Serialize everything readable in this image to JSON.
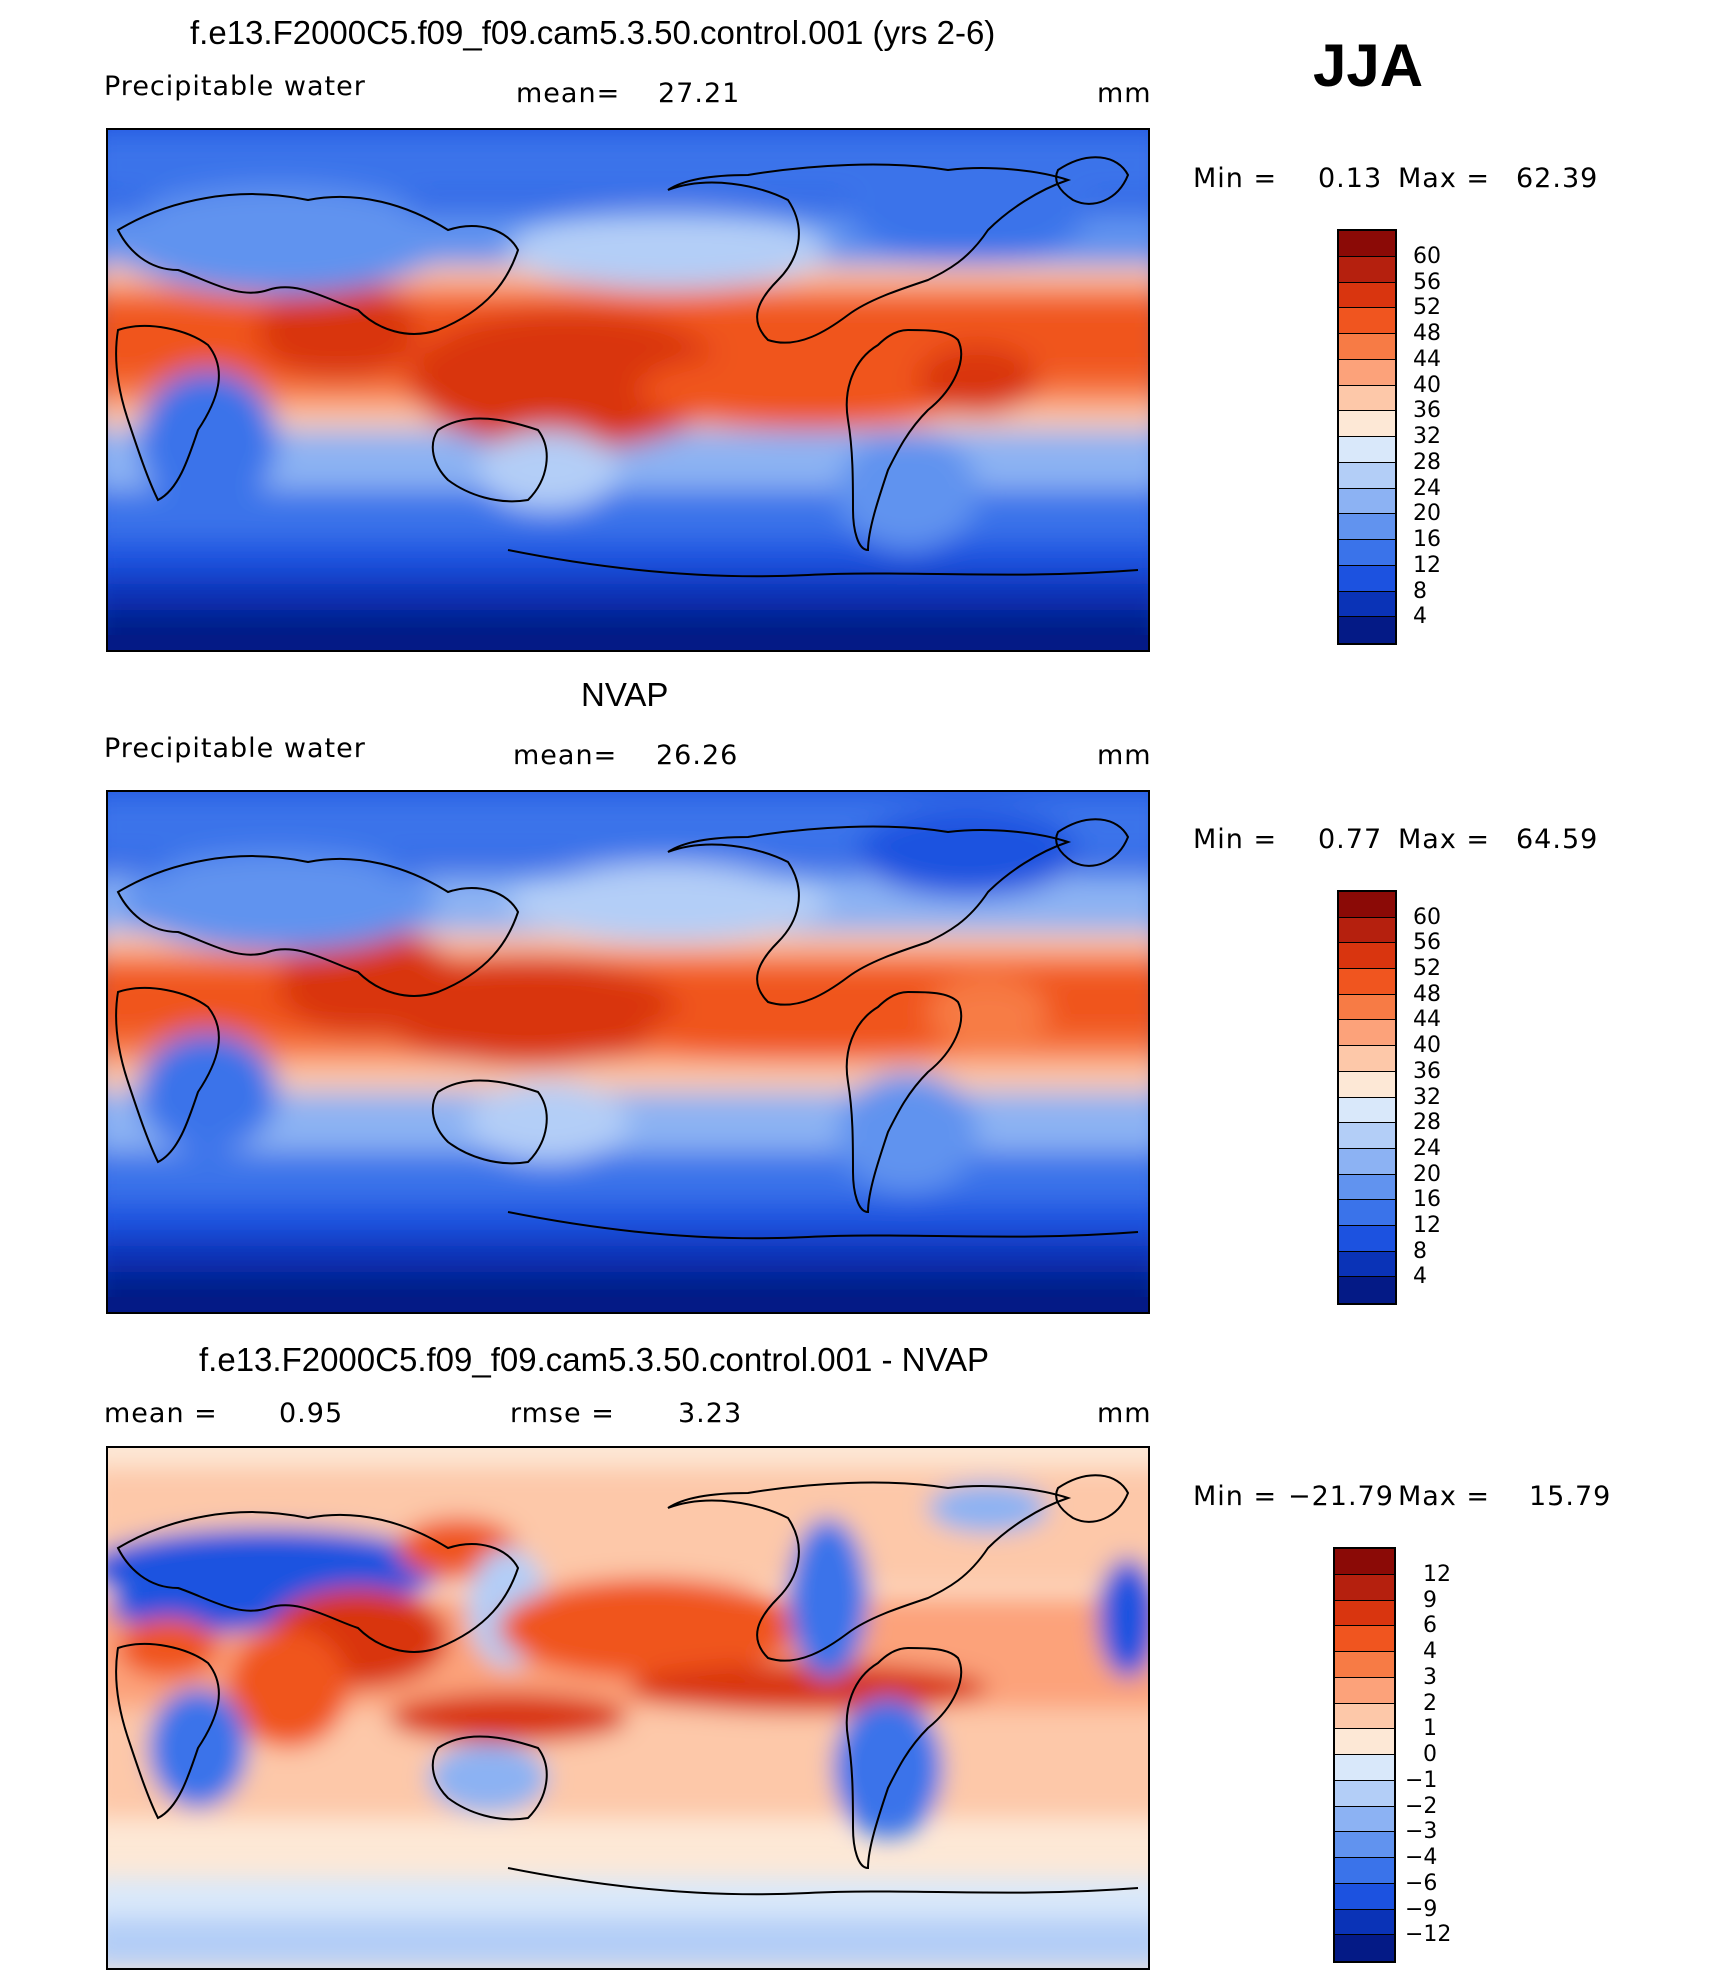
{
  "season": "JJA",
  "units": "mm",
  "panels": [
    {
      "title": "f.e13.F2000C5.f09_f09.cam5.3.50.control.001 (yrs 2-6)",
      "variable": "Precipitable water",
      "stat_label": "mean=",
      "stat_value": "27.21",
      "min_label": "Min =",
      "min_value": "0.13",
      "max_label": "Max =",
      "max_value": "62.39",
      "levels": [
        "60",
        "56",
        "52",
        "48",
        "44",
        "40",
        "36",
        "32",
        "28",
        "24",
        "20",
        "16",
        "12",
        "8",
        "4"
      ],
      "colors": [
        "#8b0a06",
        "#b5200e",
        "#d9350f",
        "#f0551f",
        "#f77b45",
        "#fca27a",
        "#fdc8a9",
        "#fde8d6",
        "#d9e8fa",
        "#b3cef7",
        "#8cb2f3",
        "#6193ef",
        "#3a73ea",
        "#1c52e0",
        "#0a33b7",
        "#041a86"
      ]
    },
    {
      "title": "NVAP",
      "variable": "Precipitable water",
      "stat_label": "mean=",
      "stat_value": "26.26",
      "min_label": "Min =",
      "min_value": "0.77",
      "max_label": "Max =",
      "max_value": "64.59",
      "levels": [
        "60",
        "56",
        "52",
        "48",
        "44",
        "40",
        "36",
        "32",
        "28",
        "24",
        "20",
        "16",
        "12",
        "8",
        "4"
      ],
      "colors": [
        "#8b0a06",
        "#b5200e",
        "#d9350f",
        "#f0551f",
        "#f77b45",
        "#fca27a",
        "#fdc8a9",
        "#fde8d6",
        "#d9e8fa",
        "#b3cef7",
        "#8cb2f3",
        "#6193ef",
        "#3a73ea",
        "#1c52e0",
        "#0a33b7",
        "#041a86"
      ]
    },
    {
      "title": "f.e13.F2000C5.f09_f09.cam5.3.50.control.001 - NVAP",
      "mean_label": "mean =",
      "mean_value": "0.95",
      "rmse_label": "rmse =",
      "rmse_value": "3.23",
      "min_label": "Min =",
      "min_value": "−21.79",
      "max_label": "Max =",
      "max_value": "15.79",
      "levels": [
        "12",
        "9",
        "6",
        "4",
        "3",
        "2",
        "1",
        "0",
        "−1",
        "−2",
        "−3",
        "−4",
        "−6",
        "−9",
        "−12"
      ],
      "colors": [
        "#8b0a06",
        "#b5200e",
        "#d9350f",
        "#f0551f",
        "#f77b45",
        "#fca27a",
        "#fdc8a9",
        "#fde8d6",
        "#d9e8fa",
        "#b3cef7",
        "#8cb2f3",
        "#6193ef",
        "#3a73ea",
        "#1c52e0",
        "#0a33b7",
        "#041a86"
      ]
    }
  ]
}
